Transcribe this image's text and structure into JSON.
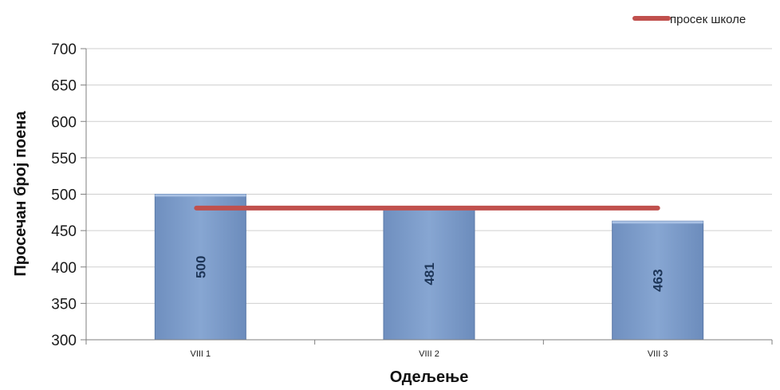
{
  "chart_data": {
    "type": "bar",
    "categories": [
      "VIII 1",
      "VIII 2",
      "VIII 3"
    ],
    "series": [
      {
        "values": [
          500,
          481,
          463
        ],
        "color": "#7b9bc8"
      }
    ],
    "reference_line": {
      "name": "просек школе",
      "value": 481,
      "color": "#c0504d"
    },
    "ylabel": "Просечан број  поена",
    "xlabel": "Одељење",
    "ylim": [
      300,
      700
    ],
    "yticks": [
      300,
      350,
      400,
      450,
      500,
      550,
      600,
      650,
      700
    ],
    "grid": true,
    "legend_position": "top-right"
  }
}
